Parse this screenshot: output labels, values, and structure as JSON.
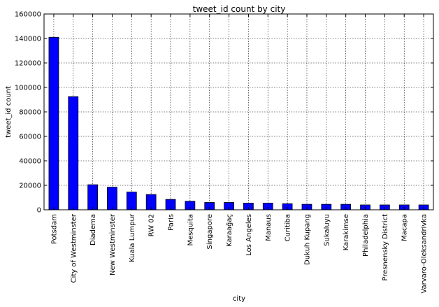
{
  "chart_data": {
    "type": "bar",
    "title": "tweet_id count by city",
    "xlabel": "city",
    "ylabel": "tweet_id count",
    "ylim": [
      0,
      160000
    ],
    "yticks": [
      0,
      20000,
      40000,
      60000,
      80000,
      100000,
      120000,
      140000,
      160000
    ],
    "grid": true,
    "bar_color": "#0000ff",
    "categories": [
      "Potsdam",
      "City of Westminster",
      "Diadema",
      "New Westminster",
      "Kuala Lumpur",
      "RW 02",
      "Paris",
      "Mesquita",
      "Singapore",
      "Karaağaç",
      "Los Angeles",
      "Manaus",
      "Curitiba",
      "Dukuh Kupang",
      "Sukaluyu",
      "Karakimse",
      "Philadelphia",
      "Presnensky District",
      "Macapa",
      "Varvaro-Oleksandrivka"
    ],
    "values": [
      141000,
      92500,
      20500,
      18500,
      14500,
      12500,
      8500,
      7000,
      6000,
      6000,
      5500,
      5500,
      5000,
      4500,
      4500,
      4500,
      4000,
      4000,
      4000,
      4000
    ]
  }
}
